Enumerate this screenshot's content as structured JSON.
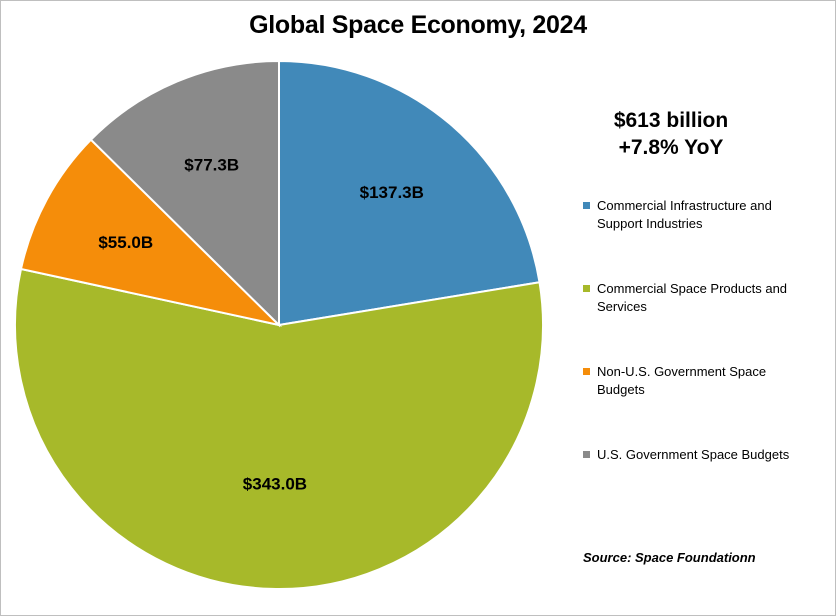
{
  "chart_data": {
    "type": "pie",
    "title": "Global Space Economy, 2024",
    "summary": {
      "total": "$613 billion",
      "growth": "+7.8% YoY"
    },
    "unit": "USD billions",
    "slices": [
      {
        "label": "Commercial Infrastructure and Support Industries",
        "value": 137.3,
        "display": "$137.3B",
        "color": "#4189b9"
      },
      {
        "label": "Commercial Space Products and Services",
        "value": 343.0,
        "display": "$343.0B",
        "color": "#a7b92a"
      },
      {
        "label": "Non-U.S. Government Space Budgets",
        "value": 55.0,
        "display": "$55.0B",
        "color": "#f58d0a"
      },
      {
        "label": "U.S. Government Space Budgets",
        "value": 77.3,
        "display": "$77.3B",
        "color": "#8a8a8a"
      }
    ],
    "legend_position": "right",
    "source": "Source: Space Foundationn"
  }
}
